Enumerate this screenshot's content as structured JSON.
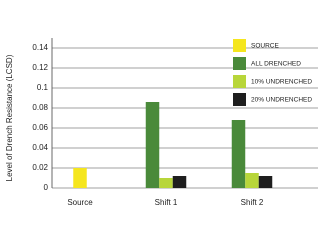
{
  "chart_data": {
    "type": "bar",
    "y_label": "Level of Drench Resistance (LCSD)",
    "categories": [
      "Source",
      "Shift 1",
      "Shift 2"
    ],
    "series": [
      {
        "name": "SOURCE",
        "color": "#f5e61e",
        "values": [
          0.02,
          null,
          null
        ]
      },
      {
        "name": "ALL DRENCHED",
        "color": "#4a8a3a",
        "values": [
          null,
          0.086,
          0.068
        ]
      },
      {
        "name": "10% UNDRENCHED",
        "color": "#b8d63a",
        "values": [
          null,
          0.01,
          0.015
        ]
      },
      {
        "name": "20% UNDRENCHED",
        "color": "#1e1e1e",
        "values": [
          null,
          0.012,
          0.012
        ]
      }
    ],
    "ylim": [
      0,
      0.15
    ],
    "yticks": [
      0,
      0.02,
      0.04,
      0.06,
      0.08,
      0.1,
      0.12,
      0.14
    ],
    "grid": true
  }
}
